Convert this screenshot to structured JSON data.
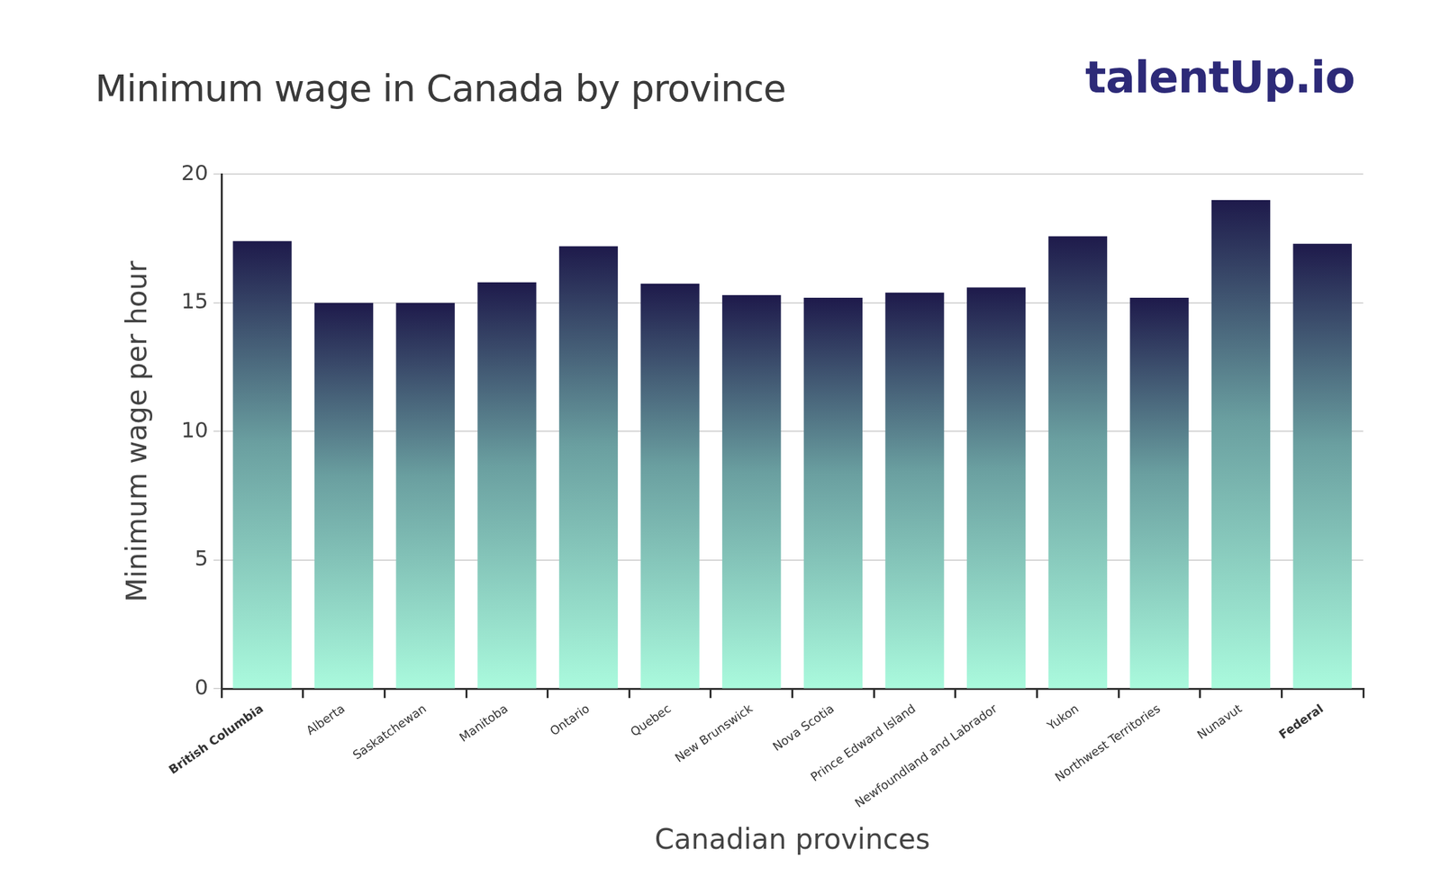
{
  "chart_data": {
    "type": "bar",
    "title": "Minimum wage in Canada by province",
    "logo": "talentUp.io",
    "x_label": "Canadian provinces",
    "y_label": "Minimum wage per hour",
    "categories": [
      "British Columbia",
      "Alberta",
      "Saskatchewan",
      "Manitoba",
      "Ontario",
      "Quebec",
      "New Brunswick",
      "Nova Scotia",
      "Prince Edward Island",
      "Newfoundland and Labrador",
      "Yukon",
      "Northwest Territories",
      "Nunavut",
      "Federal"
    ],
    "values": [
      17.4,
      15.0,
      15.0,
      15.8,
      17.2,
      15.75,
      15.3,
      15.2,
      15.4,
      15.6,
      17.59,
      15.2,
      19.0,
      17.3
    ],
    "color": "#1e1a4b",
    "ylim": [
      0,
      20
    ],
    "yticks": [
      0,
      5,
      10,
      15,
      20
    ],
    "grid": true
  }
}
